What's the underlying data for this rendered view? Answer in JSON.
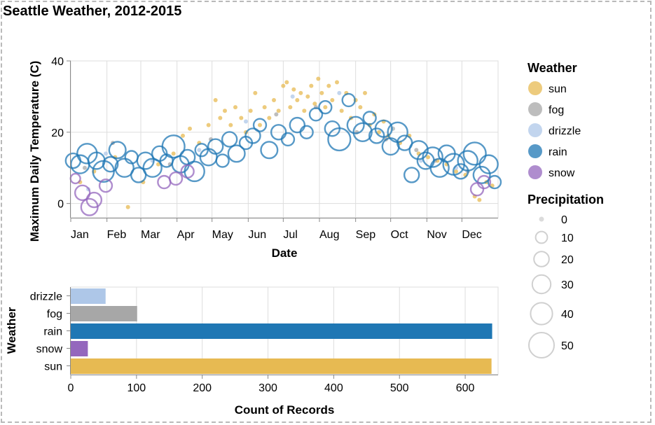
{
  "title": "Seattle Weather, 2012-2015",
  "colors": {
    "sun": "#e7ba52",
    "fog": "#a7a7a7",
    "drizzle": "#aec7e8",
    "rain": "#1f77b4",
    "snow": "#9467bd"
  },
  "chart_data": [
    {
      "type": "scatter",
      "xlabel": "Date",
      "ylabel": "Maximum Daily Temperature (C)",
      "x_ticks": [
        "Jan",
        "Feb",
        "Mar",
        "Apr",
        "May",
        "Jun",
        "Jul",
        "Aug",
        "Sep",
        "Oct",
        "Nov",
        "Dec"
      ],
      "y_ticks": [
        "0",
        "20",
        "40"
      ],
      "ylim": [
        -4,
        40
      ],
      "grid": true,
      "series": [
        {
          "name": "sun",
          "points": [
            [
              8,
              6,
              0
            ],
            [
              20,
              9,
              0
            ],
            [
              38,
              13,
              0
            ],
            [
              49,
              -1,
              0
            ],
            [
              62,
              6,
              0
            ],
            [
              75,
              11,
              0
            ],
            [
              88,
              14,
              0
            ],
            [
              96,
              19,
              0
            ],
            [
              102,
              21,
              0
            ],
            [
              110,
              17,
              0
            ],
            [
              118,
              22,
              0
            ],
            [
              124,
              29,
              0
            ],
            [
              128,
              24,
              0
            ],
            [
              132,
              26,
              0
            ],
            [
              137,
              22,
              0
            ],
            [
              141,
              27,
              0
            ],
            [
              146,
              24,
              0
            ],
            [
              150,
              20,
              0
            ],
            [
              154,
              26,
              0
            ],
            [
              158,
              31,
              0
            ],
            [
              162,
              22,
              0
            ],
            [
              166,
              27,
              0
            ],
            [
              170,
              24,
              0
            ],
            [
              174,
              29,
              0
            ],
            [
              178,
              26,
              0
            ],
            [
              182,
              33,
              0
            ],
            [
              185,
              34,
              0
            ],
            [
              188,
              27,
              0
            ],
            [
              191,
              32,
              0
            ],
            [
              194,
              29,
              0
            ],
            [
              197,
              31,
              0
            ],
            [
              200,
              26,
              0
            ],
            [
              203,
              30,
              0
            ],
            [
              206,
              33,
              0
            ],
            [
              209,
              28,
              0
            ],
            [
              212,
              35,
              0
            ],
            [
              215,
              31,
              0
            ],
            [
              218,
              27,
              0
            ],
            [
              221,
              33,
              0
            ],
            [
              224,
              29,
              0
            ],
            [
              228,
              34,
              0
            ],
            [
              232,
              26,
              0
            ],
            [
              236,
              31,
              0
            ],
            [
              240,
              24,
              0
            ],
            [
              244,
              29,
              0
            ],
            [
              248,
              27,
              0
            ],
            [
              252,
              31,
              0
            ],
            [
              256,
              22,
              0
            ],
            [
              260,
              25,
              0
            ],
            [
              264,
              20,
              0
            ],
            [
              268,
              23,
              0
            ],
            [
              272,
              19,
              0
            ],
            [
              276,
              21,
              0
            ],
            [
              282,
              17,
              0
            ],
            [
              290,
              19,
              0
            ],
            [
              298,
              14,
              0
            ],
            [
              306,
              13,
              0
            ],
            [
              314,
              12,
              0
            ],
            [
              322,
              11,
              0
            ],
            [
              330,
              9,
              0
            ],
            [
              338,
              8,
              0
            ],
            [
              346,
              2,
              0
            ],
            [
              350,
              1,
              0
            ],
            [
              356,
              6,
              0
            ],
            [
              361,
              5,
              0
            ]
          ]
        },
        {
          "name": "fog",
          "points": [
            [
              12,
              10,
              0
            ],
            [
              36,
              17,
              0
            ],
            [
              85,
              11,
              0
            ],
            [
              120,
              18,
              0
            ],
            [
              176,
              25,
              0
            ],
            [
              210,
              27,
              0
            ],
            [
              245,
              20,
              0
            ],
            [
              270,
              18,
              0
            ],
            [
              296,
              15,
              0
            ],
            [
              312,
              12,
              0
            ],
            [
              340,
              9,
              0
            ]
          ]
        },
        {
          "name": "drizzle",
          "points": [
            [
              15,
              4,
              0
            ],
            [
              30,
              14,
              0
            ],
            [
              70,
              12,
              0
            ],
            [
              110,
              15,
              0
            ],
            [
              150,
              23,
              0
            ],
            [
              190,
              30,
              0
            ],
            [
              230,
              31,
              0
            ],
            [
              276,
              21,
              0
            ],
            [
              300,
              12,
              0
            ],
            [
              330,
              10,
              0
            ]
          ]
        },
        {
          "name": "rain",
          "points": [
            [
              2,
              12,
              15
            ],
            [
              8,
              11,
              25
            ],
            [
              14,
              14,
              30
            ],
            [
              22,
              12,
              20
            ],
            [
              28,
              9,
              35
            ],
            [
              34,
              11,
              15
            ],
            [
              40,
              15,
              20
            ],
            [
              46,
              10,
              25
            ],
            [
              52,
              13,
              10
            ],
            [
              58,
              8,
              15
            ],
            [
              64,
              12,
              20
            ],
            [
              70,
              10,
              25
            ],
            [
              76,
              14,
              15
            ],
            [
              82,
              12,
              10
            ],
            [
              88,
              16,
              40
            ],
            [
              94,
              11,
              20
            ],
            [
              100,
              13,
              15
            ],
            [
              106,
              9,
              30
            ],
            [
              112,
              15,
              10
            ],
            [
              118,
              13,
              20
            ],
            [
              124,
              16,
              15
            ],
            [
              130,
              12,
              10
            ],
            [
              136,
              18,
              15
            ],
            [
              142,
              14,
              20
            ],
            [
              150,
              17,
              10
            ],
            [
              156,
              19,
              15
            ],
            [
              162,
              22,
              10
            ],
            [
              170,
              15,
              20
            ],
            [
              178,
              20,
              15
            ],
            [
              186,
              18,
              10
            ],
            [
              194,
              22,
              15
            ],
            [
              202,
              20,
              10
            ],
            [
              210,
              25,
              10
            ],
            [
              218,
              27,
              10
            ],
            [
              224,
              21,
              15
            ],
            [
              230,
              18,
              40
            ],
            [
              238,
              29,
              10
            ],
            [
              244,
              22,
              20
            ],
            [
              250,
              20,
              25
            ],
            [
              256,
              24,
              10
            ],
            [
              262,
              19,
              15
            ],
            [
              268,
              21,
              20
            ],
            [
              274,
              16,
              20
            ],
            [
              280,
              20,
              30
            ],
            [
              286,
              17,
              15
            ],
            [
              292,
              8,
              15
            ],
            [
              298,
              15,
              25
            ],
            [
              304,
              12,
              20
            ],
            [
              310,
              13,
              30
            ],
            [
              316,
              10,
              25
            ],
            [
              322,
              14,
              20
            ],
            [
              328,
              11,
              35
            ],
            [
              334,
              9,
              15
            ],
            [
              340,
              12,
              30
            ],
            [
              346,
              14,
              40
            ],
            [
              352,
              8,
              20
            ],
            [
              358,
              11,
              25
            ],
            [
              363,
              6,
              10
            ]
          ]
        },
        {
          "name": "snow",
          "points": [
            [
              4,
              7,
              5
            ],
            [
              10,
              3,
              15
            ],
            [
              16,
              -1,
              20
            ],
            [
              20,
              1,
              15
            ],
            [
              30,
              5,
              10
            ],
            [
              80,
              6,
              10
            ],
            [
              90,
              7,
              10
            ],
            [
              100,
              9,
              10
            ],
            [
              348,
              4,
              10
            ],
            [
              354,
              6,
              10
            ]
          ]
        }
      ]
    },
    {
      "type": "bar",
      "orientation": "horizontal",
      "categories": [
        "drizzle",
        "fog",
        "rain",
        "snow",
        "sun"
      ],
      "values": [
        53,
        101,
        641,
        26,
        640
      ],
      "xlabel": "Count of Records",
      "ylabel": "Weather",
      "x_ticks": [
        0,
        100,
        200,
        300,
        400,
        500,
        600
      ],
      "xlim": [
        0,
        650
      ]
    }
  ],
  "legend": {
    "weather_title": "Weather",
    "weather_items": [
      "sun",
      "fog",
      "drizzle",
      "rain",
      "snow"
    ],
    "precip_title": "Precipitation",
    "precip_items": [
      "0",
      "10",
      "20",
      "30",
      "40",
      "50"
    ]
  }
}
